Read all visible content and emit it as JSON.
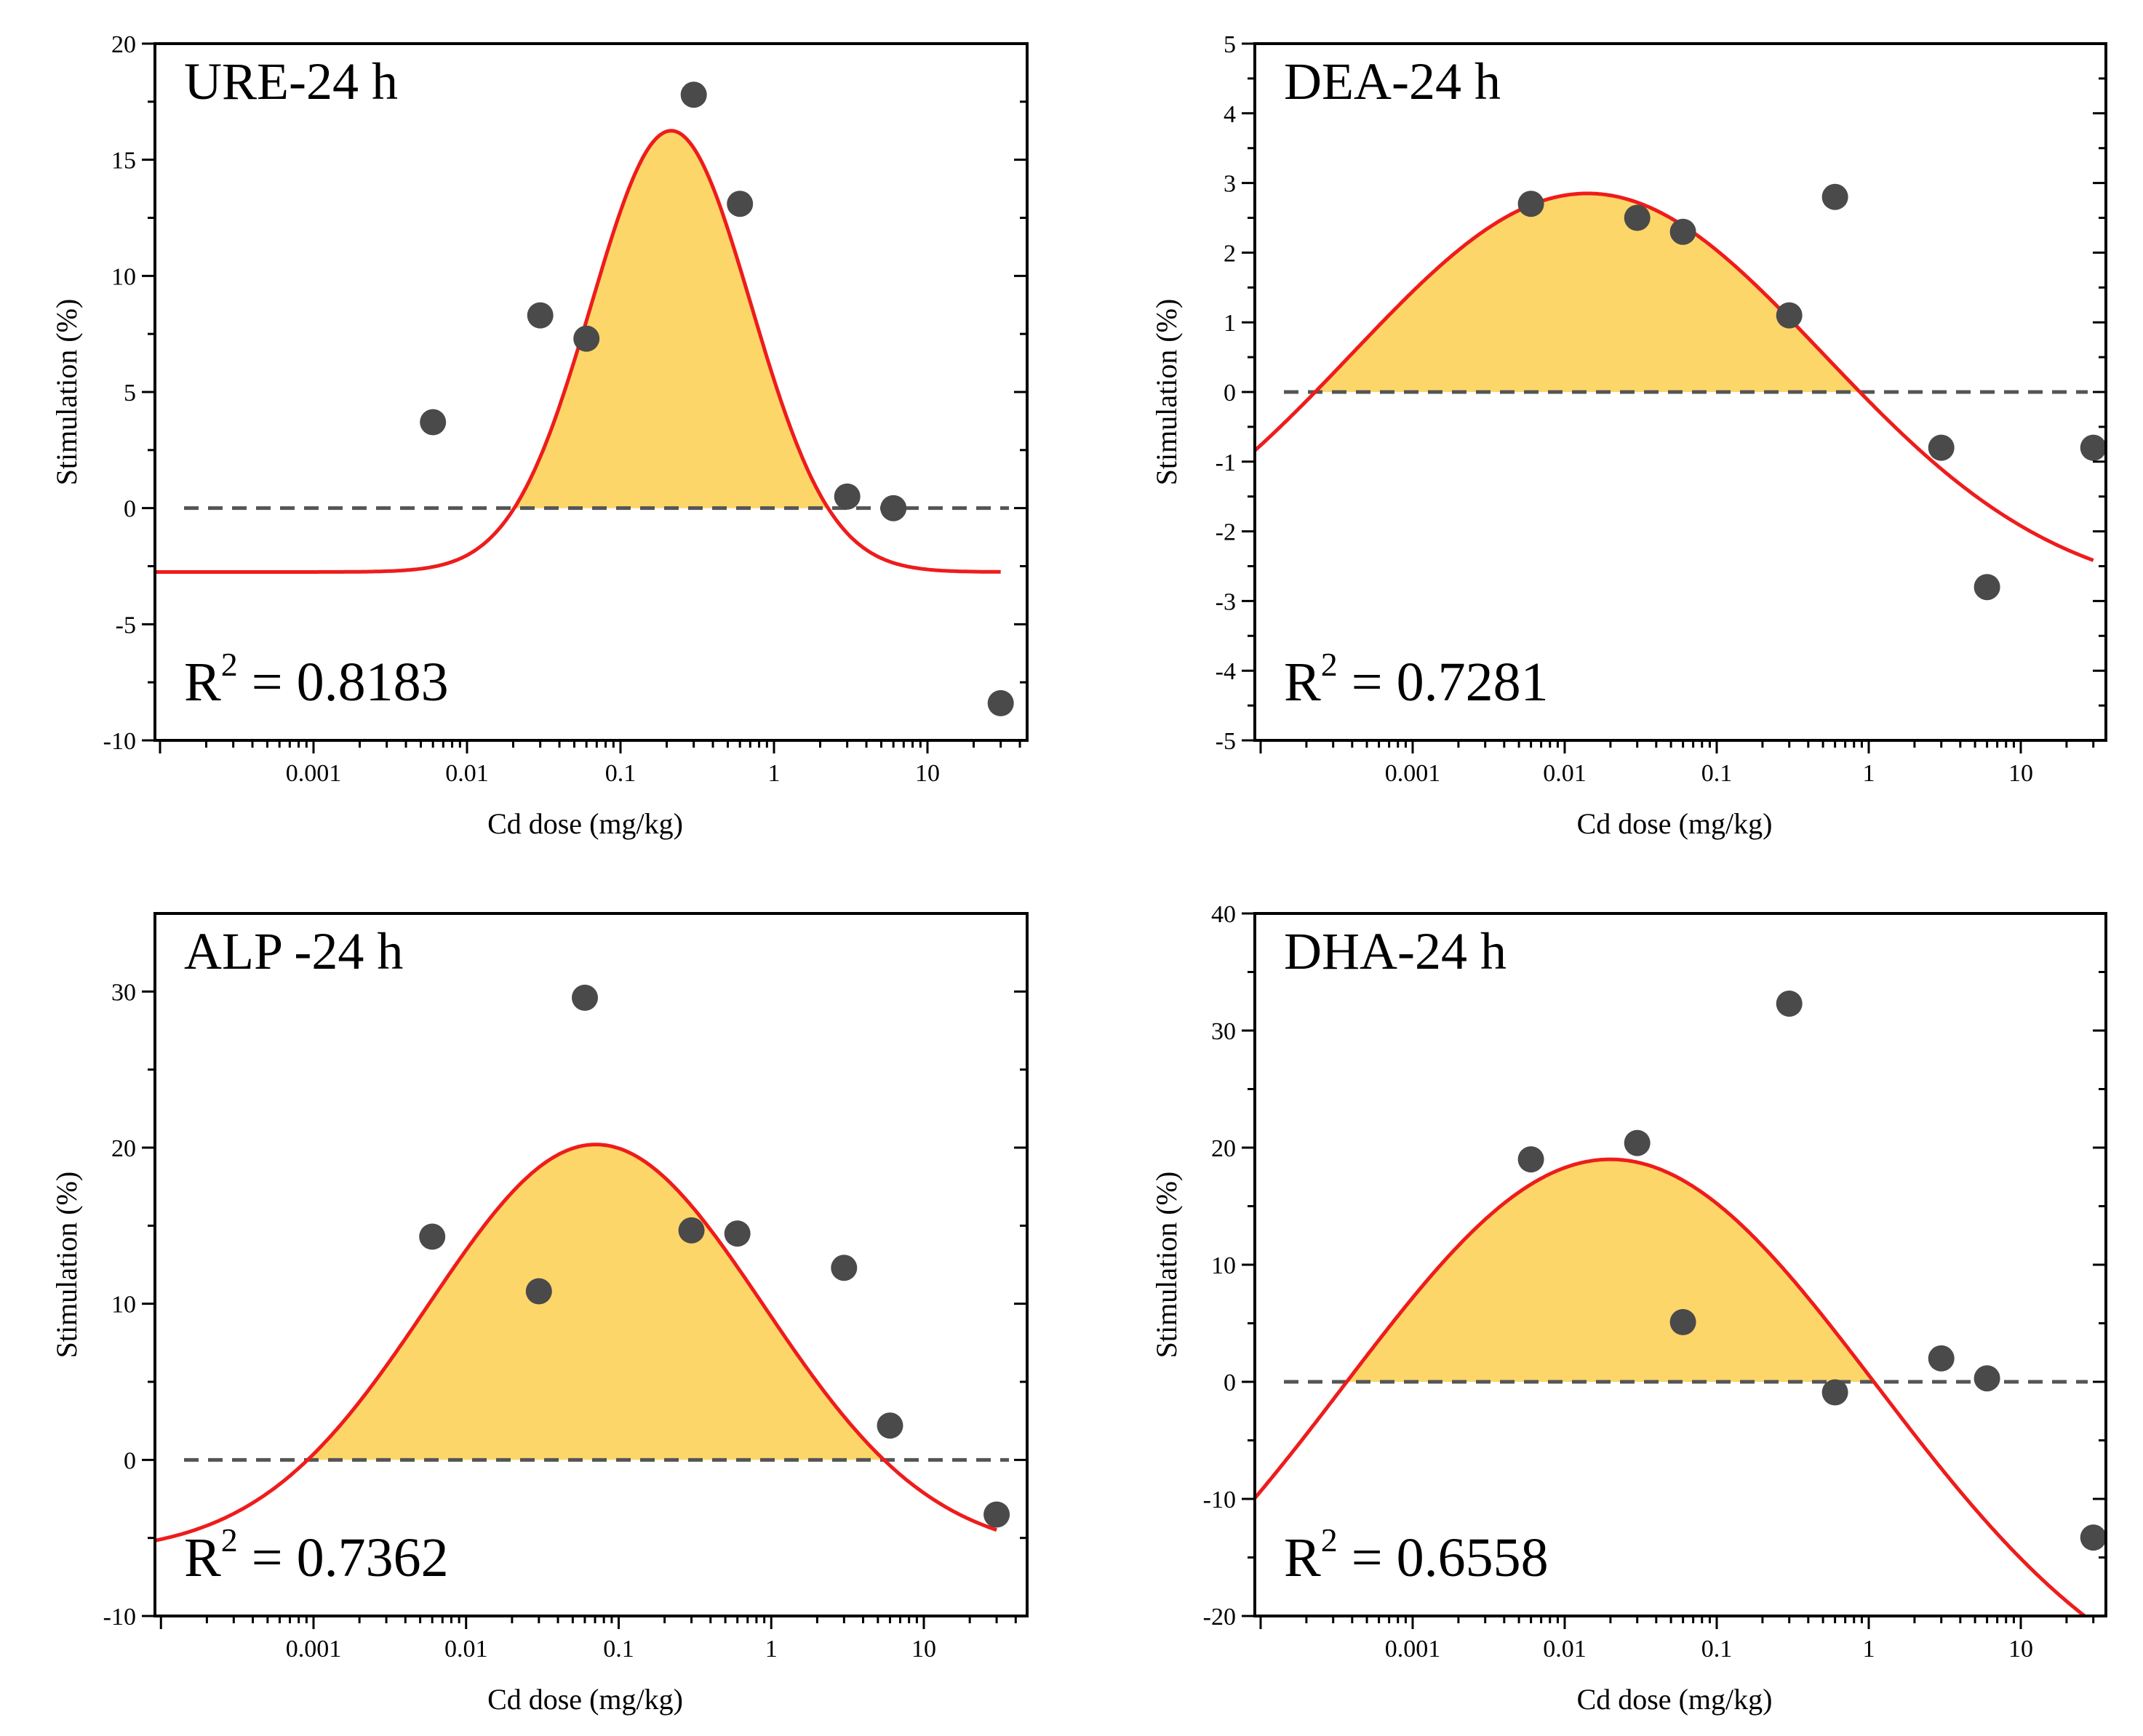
{
  "chart_data": [
    {
      "type": "scatter",
      "title": "URE-24 h",
      "xlabel": "Cd dose (mg/kg)",
      "ylabel": "Stimulation (%)",
      "xscale": "log",
      "xlim": [
        0.0001,
        50
      ],
      "ylim": [
        -10,
        20
      ],
      "yticks": [
        -10,
        -5,
        0,
        5,
        10,
        15,
        20
      ],
      "ytick_labels": [
        "-10",
        "-5",
        "0",
        "5",
        "10",
        "15",
        "20"
      ],
      "xticks": [
        0.001,
        0.01,
        0.1,
        1,
        10
      ],
      "xtick_labels": [
        "0.001",
        "0.01",
        "0.1",
        "1",
        "10"
      ],
      "r2_label": "R",
      "r2_sup": "2",
      "r2_value": " = 0.8183",
      "baseline": 0,
      "series": [
        {
          "name": "observed",
          "x": [
            0.006,
            0.03,
            0.06,
            0.3,
            0.6,
            3,
            6,
            30
          ],
          "y": [
            3.7,
            8.3,
            7.3,
            17.8,
            13.1,
            0.5,
            0.0,
            -8.4
          ]
        },
        {
          "name": "fitted",
          "curve": {
            "form": "gaussian-log",
            "offset": -2.75,
            "amplitude": 19.0,
            "center_log10": -0.67,
            "sigma_log10": 0.52
          },
          "x_range": [
            0.0001,
            30
          ]
        }
      ]
    },
    {
      "type": "scatter",
      "title": "DEA-24 h",
      "xlabel": "Cd dose (mg/kg)",
      "ylabel": "Stimulation (%)",
      "xscale": "log",
      "xlim": [
        0.0001,
        50
      ],
      "ylim": [
        -5,
        5
      ],
      "yticks": [
        -5,
        -4,
        -3,
        -2,
        -1,
        0,
        1,
        2,
        3,
        4,
        5
      ],
      "ytick_labels": [
        "-5",
        "-4",
        "-3",
        "-2",
        "-1",
        "0",
        "1",
        "2",
        "3",
        "4",
        "5"
      ],
      "xticks": [
        0.001,
        0.01,
        0.1,
        1,
        10
      ],
      "xtick_labels": [
        "0.001",
        "0.01",
        "0.1",
        "1",
        "10"
      ],
      "r2_label": "R",
      "r2_sup": "2",
      "r2_value": " = 0.7281",
      "baseline": 0,
      "series": [
        {
          "name": "observed",
          "x": [
            0.006,
            0.03,
            0.06,
            0.3,
            0.6,
            3,
            6,
            30
          ],
          "y": [
            2.7,
            2.5,
            2.3,
            1.1,
            2.8,
            -0.8,
            -2.8,
            -0.8
          ]
        },
        {
          "name": "fitted",
          "curve": {
            "form": "gaussian-log",
            "offset": -3.0,
            "amplitude": 5.85,
            "center_log10": -1.85,
            "sigma_log10": 1.55
          },
          "x_range": [
            0.0001,
            30
          ]
        }
      ]
    },
    {
      "type": "scatter",
      "title": "ALP -24 h",
      "xlabel": "Cd dose (mg/kg)",
      "ylabel": "Stimulation (%)",
      "xscale": "log",
      "xlim": [
        0.0001,
        50
      ],
      "ylim": [
        -10,
        35
      ],
      "yticks": [
        -10,
        0,
        10,
        20,
        30
      ],
      "ytick_labels": [
        "-10",
        "0",
        "10",
        "20",
        "30"
      ],
      "xticks": [
        0.001,
        0.01,
        0.1,
        1,
        10
      ],
      "xtick_labels": [
        "0.001",
        "0.01",
        "0.1",
        "1",
        "10"
      ],
      "r2_label": "R",
      "r2_sup": "2",
      "r2_value": " = 0.7362",
      "baseline": 0,
      "series": [
        {
          "name": "observed",
          "x": [
            0.006,
            0.03,
            0.06,
            0.3,
            0.6,
            3,
            6,
            30
          ],
          "y": [
            14.3,
            10.8,
            29.6,
            14.7,
            14.5,
            12.3,
            2.2,
            -3.5
          ]
        },
        {
          "name": "fitted",
          "curve": {
            "form": "gaussian-log",
            "offset": -6.0,
            "amplitude": 26.2,
            "center_log10": -1.15,
            "sigma_log10": 1.1
          },
          "x_range": [
            0.0001,
            30
          ]
        }
      ]
    },
    {
      "type": "scatter",
      "title": "DHA-24 h",
      "xlabel": "Cd dose (mg/kg)",
      "ylabel": "Stimulation (%)",
      "xscale": "log",
      "xlim": [
        0.0001,
        50
      ],
      "ylim": [
        -20,
        40
      ],
      "yticks": [
        -20,
        -10,
        0,
        10,
        20,
        30,
        40
      ],
      "ytick_labels": [
        "-20",
        "-10",
        "0",
        "10",
        "20",
        "30",
        "40"
      ],
      "xticks": [
        0.001,
        0.01,
        0.1,
        1,
        10
      ],
      "xtick_labels": [
        "0.001",
        "0.01",
        "0.1",
        "1",
        "10"
      ],
      "r2_label": "R",
      "r2_sup": "2",
      "r2_value": " = 0.6558",
      "baseline": 0,
      "series": [
        {
          "name": "observed",
          "x": [
            0.006,
            0.03,
            0.06,
            0.3,
            0.6,
            3,
            6,
            30
          ],
          "y": [
            19.0,
            20.4,
            5.1,
            32.3,
            -0.9,
            2.0,
            0.3,
            -13.3
          ]
        },
        {
          "name": "fitted",
          "curve": {
            "form": "gaussian-log",
            "offset": -30.0,
            "amplitude": 49.0,
            "center_log10": -1.7,
            "sigma_log10": 1.75
          },
          "x_range": [
            0.0001,
            30
          ]
        }
      ]
    }
  ],
  "style": {
    "curve_color": "#ee1c1c",
    "fill_color": "#fdd66a",
    "point_color": "#4a4a4a",
    "baseline_color": "#555555",
    "axis_color": "#000000"
  }
}
